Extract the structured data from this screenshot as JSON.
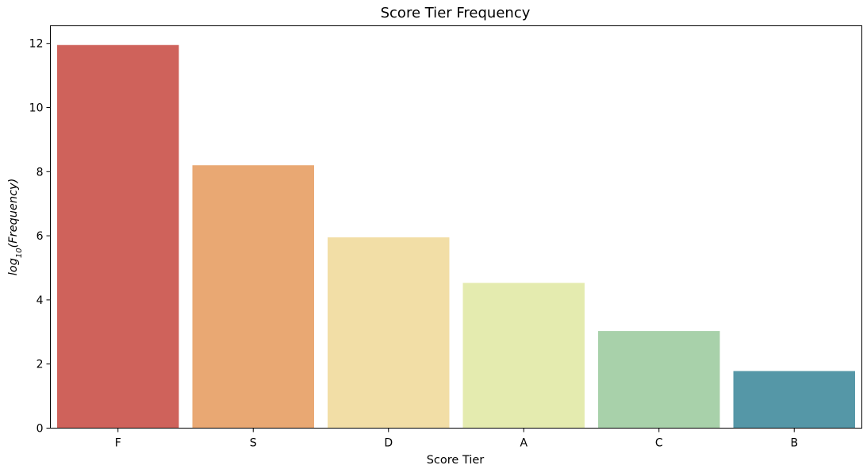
{
  "chart_data": {
    "type": "bar",
    "title": "Score Tier Frequency",
    "xlabel": "Score Tier",
    "ylabel": {
      "prefix": "log",
      "subscript": "10",
      "suffix": "(Frequency)"
    },
    "categories": [
      "F",
      "S",
      "D",
      "A",
      "C",
      "B"
    ],
    "values": [
      11.95,
      8.2,
      5.95,
      4.53,
      3.03,
      1.78
    ],
    "ylim": [
      0,
      12.55
    ],
    "yticks": [
      0,
      2,
      4,
      6,
      8,
      10,
      12
    ],
    "colors": [
      "#cf625b",
      "#e9a873",
      "#f2dea6",
      "#e4ebaf",
      "#a8d1aa",
      "#5597a7"
    ],
    "grid": false
  }
}
